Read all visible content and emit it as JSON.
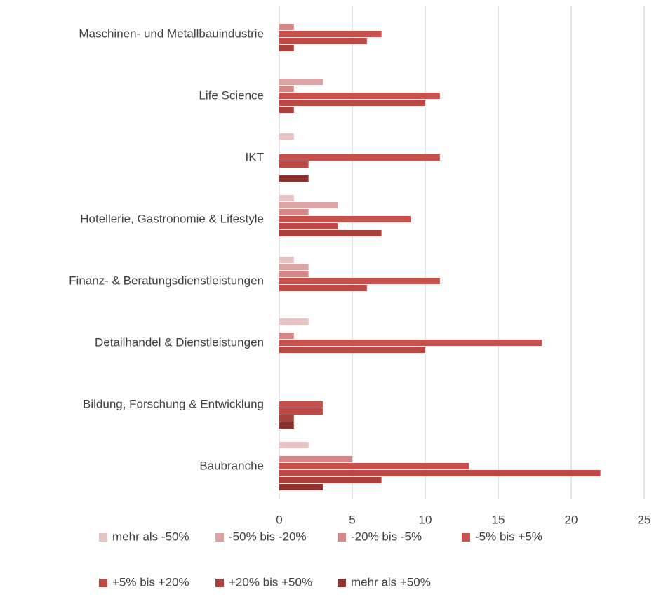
{
  "chart_data": {
    "type": "bar",
    "orientation": "horizontal",
    "categories": [
      "Maschinen- und Metallbauindustrie",
      "Life Science",
      "IKT",
      "Hotellerie, Gastronomie & Lifestyle",
      "Finanz- & Beratungsdienstleistungen",
      "Detailhandel & Dienstleistungen",
      "Bildung, Forschung & Entwicklung",
      "Baubranche"
    ],
    "series": [
      {
        "name": "mehr als -50%",
        "color": "#e6c4c4",
        "values": [
          0,
          0,
          1,
          1,
          1,
          2,
          0,
          2
        ]
      },
      {
        "name": "-50% bis -20%",
        "color": "#dba4a4",
        "values": [
          0,
          3,
          0,
          4,
          2,
          0,
          0,
          0
        ]
      },
      {
        "name": "-20% bis -5%",
        "color": "#d48888",
        "values": [
          1,
          1,
          0,
          2,
          2,
          1,
          0,
          5
        ]
      },
      {
        "name": "-5% bis +5%",
        "color": "#c8504d",
        "values": [
          7,
          11,
          11,
          9,
          11,
          18,
          3,
          13
        ]
      },
      {
        "name": "+5% bis +20%",
        "color": "#bd4946",
        "values": [
          6,
          10,
          2,
          4,
          6,
          10,
          3,
          22
        ]
      },
      {
        "name": "+20% bis +50%",
        "color": "#aa3f3c",
        "values": [
          1,
          1,
          0,
          7,
          0,
          0,
          1,
          7
        ]
      },
      {
        "name": "mehr als +50%",
        "color": "#8e302e",
        "values": [
          0,
          0,
          2,
          0,
          0,
          0,
          1,
          3
        ]
      }
    ],
    "xlim": [
      0,
      25
    ],
    "xticks": [
      0,
      5,
      10,
      15,
      20,
      25
    ],
    "grid": true,
    "legend": "bottom"
  }
}
